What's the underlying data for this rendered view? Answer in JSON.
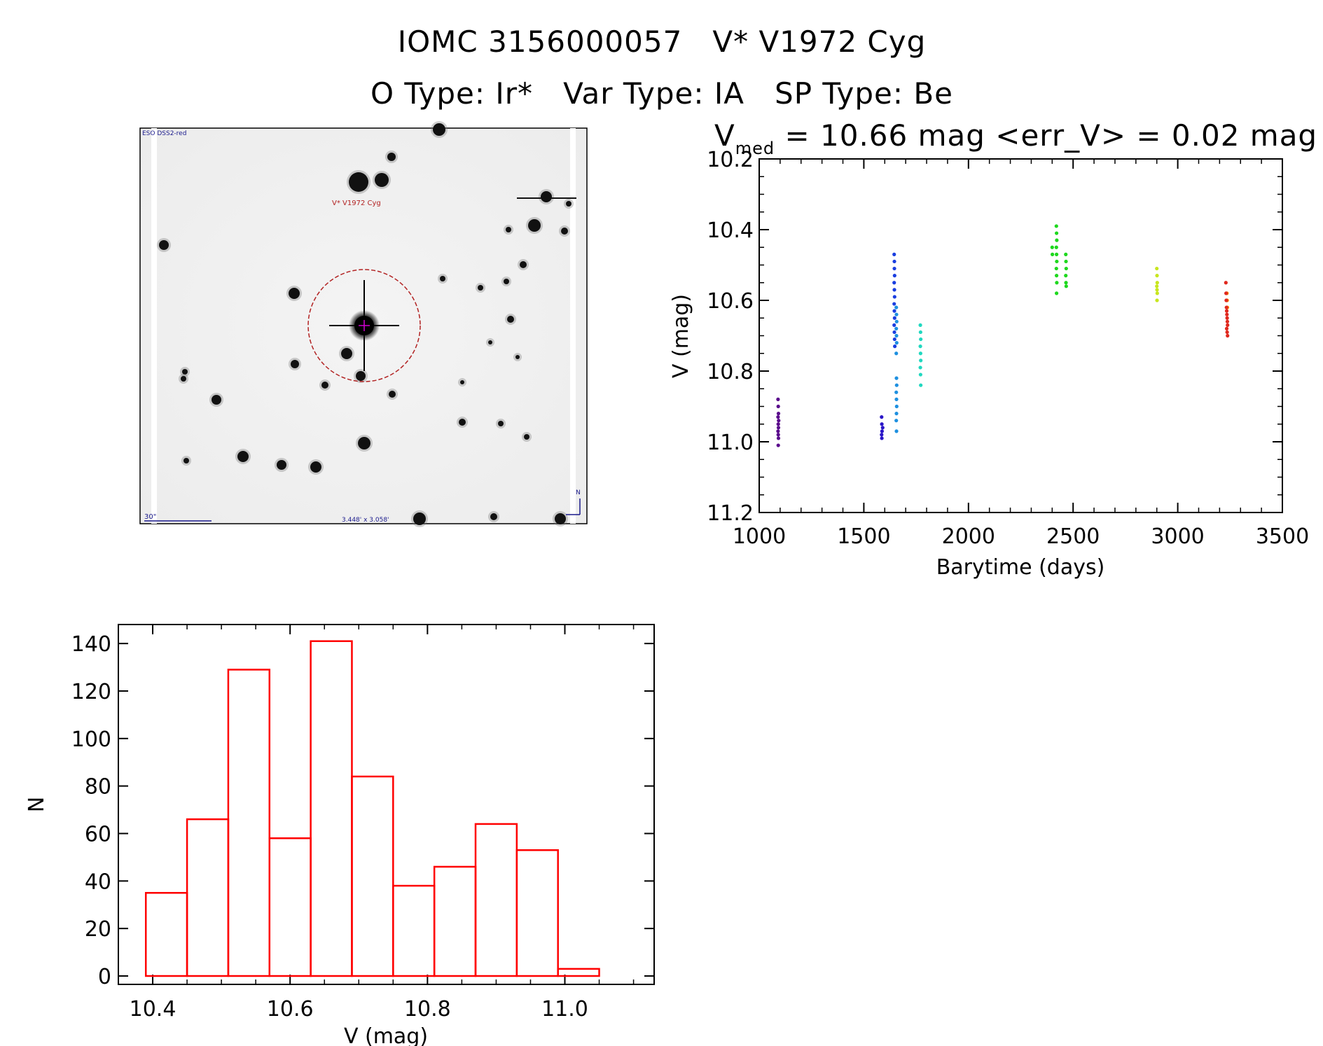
{
  "header": {
    "title": "IOMC 3156000057   V* V1972 Cyg",
    "subtitle": "O Type: Ir*   Var Type: IA   SP Type: Be"
  },
  "finder_chart": {
    "survey_label": "ESO DSS2-red",
    "target_label": "V* V1972 Cyg",
    "scale_label": "30\"",
    "fov_label": "3.448' x 3.058'",
    "north_label": "N",
    "target_marker_color": "#b22222"
  },
  "chart_data": [
    {
      "type": "scatter",
      "title_prefix": "V",
      "title_subscript": "med",
      "title_rest": " = 10.66 mag <err_V> = 0.02 mag",
      "xlabel": "Barytime (days)",
      "ylabel": "V (mag)",
      "xlim": [
        1000,
        3500
      ],
      "ylim": [
        11.2,
        10.2
      ],
      "y_reversed": true,
      "xticks": [
        1000,
        1500,
        2000,
        2500,
        3000,
        3500
      ],
      "yticks": [
        10.2,
        10.4,
        10.6,
        10.8,
        11.0,
        11.2
      ],
      "ytick_labels": [
        "10.2",
        "10.4",
        "10.6",
        "10.8",
        "11.0",
        "11.2"
      ],
      "grid": false,
      "series": [
        {
          "color": "#5a0a8c",
          "points": [
            [
              1090,
              10.88
            ],
            [
              1091,
              10.9
            ],
            [
              1092,
              10.92
            ],
            [
              1090,
              10.93
            ],
            [
              1091,
              10.95
            ],
            [
              1092,
              10.96
            ],
            [
              1090,
              10.97
            ],
            [
              1091,
              10.98
            ],
            [
              1092,
              10.99
            ],
            [
              1091,
              11.01
            ],
            [
              1093,
              10.94
            ]
          ]
        },
        {
          "color": "#2a16c8",
          "points": [
            [
              1585,
              10.93
            ],
            [
              1586,
              10.95
            ],
            [
              1587,
              10.97
            ],
            [
              1585,
              10.98
            ],
            [
              1586,
              10.99
            ],
            [
              1590,
              10.96
            ]
          ]
        },
        {
          "color": "#1a3ee0",
          "points": [
            [
              1645,
              10.47
            ],
            [
              1646,
              10.49
            ],
            [
              1646,
              10.51
            ],
            [
              1647,
              10.53
            ],
            [
              1645,
              10.55
            ],
            [
              1646,
              10.57
            ],
            [
              1647,
              10.59
            ],
            [
              1645,
              10.61
            ],
            [
              1646,
              10.63
            ],
            [
              1647,
              10.65
            ],
            [
              1645,
              10.67
            ],
            [
              1646,
              10.69
            ],
            [
              1647,
              10.71
            ],
            [
              1648,
              10.73
            ]
          ]
        },
        {
          "color": "#1e90e0",
          "points": [
            [
              1655,
              10.62
            ],
            [
              1656,
              10.64
            ],
            [
              1657,
              10.66
            ],
            [
              1655,
              10.68
            ],
            [
              1656,
              10.7
            ],
            [
              1657,
              10.72
            ],
            [
              1655,
              10.75
            ],
            [
              1656,
              10.82
            ],
            [
              1657,
              10.84
            ],
            [
              1655,
              10.86
            ],
            [
              1656,
              10.88
            ],
            [
              1657,
              10.9
            ],
            [
              1656,
              10.92
            ],
            [
              1655,
              10.94
            ],
            [
              1656,
              10.97
            ]
          ]
        },
        {
          "color": "#20d8c0",
          "points": [
            [
              1770,
              10.67
            ],
            [
              1771,
              10.69
            ],
            [
              1772,
              10.71
            ],
            [
              1770,
              10.73
            ],
            [
              1771,
              10.75
            ],
            [
              1772,
              10.77
            ],
            [
              1770,
              10.79
            ],
            [
              1771,
              10.81
            ],
            [
              1772,
              10.84
            ]
          ]
        },
        {
          "color": "#1ed81e",
          "points": [
            [
              2400,
              10.45
            ],
            [
              2401,
              10.47
            ],
            [
              2420,
              10.39
            ],
            [
              2421,
              10.41
            ],
            [
              2422,
              10.43
            ],
            [
              2420,
              10.45
            ],
            [
              2421,
              10.47
            ],
            [
              2422,
              10.49
            ],
            [
              2420,
              10.51
            ],
            [
              2421,
              10.53
            ],
            [
              2422,
              10.55
            ],
            [
              2421,
              10.58
            ],
            [
              2465,
              10.47
            ],
            [
              2466,
              10.49
            ],
            [
              2467,
              10.51
            ],
            [
              2465,
              10.53
            ],
            [
              2466,
              10.55
            ],
            [
              2467,
              10.56
            ]
          ]
        },
        {
          "color": "#c8e61e",
          "points": [
            [
              2900,
              10.51
            ],
            [
              2901,
              10.53
            ],
            [
              2902,
              10.55
            ],
            [
              2900,
              10.56
            ],
            [
              2901,
              10.57
            ],
            [
              2902,
              10.58
            ],
            [
              2901,
              10.6
            ]
          ]
        },
        {
          "color": "#ff8c00",
          "points": [
            [
              3235,
              10.58
            ],
            [
              3236,
              10.6
            ],
            [
              3237,
              10.62
            ]
          ]
        },
        {
          "color": "#e0281e",
          "points": [
            [
              3230,
              10.55
            ],
            [
              3231,
              10.58
            ],
            [
              3232,
              10.6
            ],
            [
              3233,
              10.62
            ],
            [
              3234,
              10.63
            ],
            [
              3235,
              10.64
            ],
            [
              3236,
              10.65
            ],
            [
              3237,
              10.66
            ],
            [
              3238,
              10.67
            ],
            [
              3234,
              10.68
            ],
            [
              3236,
              10.69
            ],
            [
              3238,
              10.7
            ]
          ]
        }
      ]
    },
    {
      "type": "bar",
      "xlabel": "V (mag)",
      "ylabel": "N",
      "xlim": [
        10.35,
        11.13
      ],
      "ylim": [
        0,
        148
      ],
      "xticks": [
        10.4,
        10.6,
        10.8,
        11.0
      ],
      "xtick_labels": [
        "10.4",
        "10.6",
        "10.8",
        "11.0"
      ],
      "yticks": [
        0,
        20,
        40,
        60,
        80,
        100,
        120,
        140
      ],
      "bin_edges": [
        10.39,
        10.45,
        10.51,
        10.57,
        10.63,
        10.69,
        10.75,
        10.81,
        10.87,
        10.93,
        10.99,
        11.05
      ],
      "values": [
        35,
        66,
        129,
        58,
        141,
        84,
        38,
        46,
        64,
        53,
        3
      ],
      "bar_color": "#ff0000"
    }
  ]
}
